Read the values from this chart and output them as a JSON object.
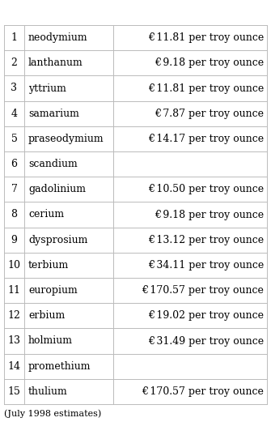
{
  "rows": [
    {
      "num": "1",
      "element": "neodymium",
      "price": "€ 11.81 per troy ounce"
    },
    {
      "num": "2",
      "element": "lanthanum",
      "price": "€ 9.18 per troy ounce"
    },
    {
      "num": "3",
      "element": "yttrium",
      "price": "€ 11.81 per troy ounce"
    },
    {
      "num": "4",
      "element": "samarium",
      "price": "€ 7.87 per troy ounce"
    },
    {
      "num": "5",
      "element": "praseodymium",
      "price": "€ 14.17 per troy ounce"
    },
    {
      "num": "6",
      "element": "scandium",
      "price": ""
    },
    {
      "num": "7",
      "element": "gadolinium",
      "price": "€ 10.50 per troy ounce"
    },
    {
      "num": "8",
      "element": "cerium",
      "price": "€ 9.18 per troy ounce"
    },
    {
      "num": "9",
      "element": "dysprosium",
      "price": "€ 13.12 per troy ounce"
    },
    {
      "num": "10",
      "element": "terbium",
      "price": "€ 34.11 per troy ounce"
    },
    {
      "num": "11",
      "element": "europium",
      "price": "€ 170.57 per troy ounce"
    },
    {
      "num": "12",
      "element": "erbium",
      "price": "€ 19.02 per troy ounce"
    },
    {
      "num": "13",
      "element": "holmium",
      "price": "€ 31.49 per troy ounce"
    },
    {
      "num": "14",
      "element": "promethium",
      "price": ""
    },
    {
      "num": "15",
      "element": "thulium",
      "price": "€ 170.57 per troy ounce"
    }
  ],
  "footnote": "(July 1998 estimates)",
  "bg_color": "#ffffff",
  "grid_color": "#bbbbbb",
  "text_color": "#000000",
  "font_size": 9.0,
  "footnote_font_size": 8.0
}
